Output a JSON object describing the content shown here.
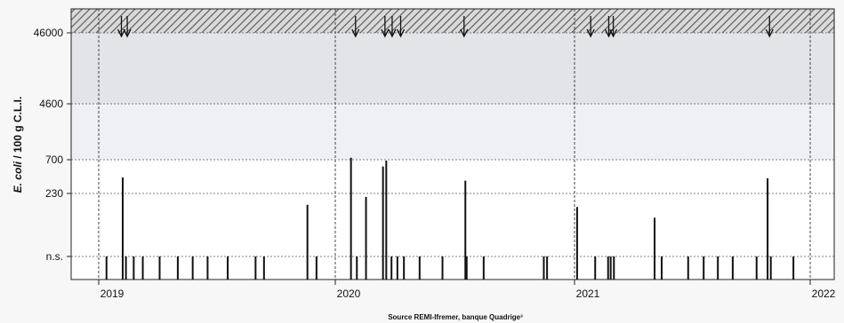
{
  "chart_data": {
    "type": "bar",
    "title": "",
    "xlabel": "",
    "ylabel_italic": "E. coli",
    "ylabel_rest": "/ 100 g C.L.I.",
    "source": "Source REMI-Ifremer, banque Quadrige³",
    "x_ticks": [
      "2019",
      "2020",
      "2021",
      "2022"
    ],
    "y_ticks": [
      "n.s.",
      "230",
      "700",
      "4600",
      "46000"
    ],
    "bands": {
      "above_46000": "hatched",
      "4600_to_46000": "light grey",
      "700_to_4600": "very light grey",
      "below_700": "white"
    },
    "grid": true,
    "xlim": [
      "2019-01-01",
      "2022-01-01"
    ],
    "values": [
      {
        "date": "2019-01-13",
        "value": "n.s."
      },
      {
        "date": "2019-02-07",
        "value": 390
      },
      {
        "date": "2019-02-12",
        "value": "n.s."
      },
      {
        "date": "2019-02-24",
        "value": "n.s."
      },
      {
        "date": "2019-03-10",
        "value": "n.s."
      },
      {
        "date": "2019-04-05",
        "value": "n.s."
      },
      {
        "date": "2019-05-03",
        "value": "n.s."
      },
      {
        "date": "2019-05-26",
        "value": "n.s."
      },
      {
        "date": "2019-06-18",
        "value": "n.s."
      },
      {
        "date": "2019-07-19",
        "value": "n.s."
      },
      {
        "date": "2019-08-31",
        "value": "n.s."
      },
      {
        "date": "2019-09-13",
        "value": "n.s."
      },
      {
        "date": "2019-11-19",
        "value": 170
      },
      {
        "date": "2019-12-03",
        "value": "n.s."
      },
      {
        "date": "2020-01-25",
        "value": 750
      },
      {
        "date": "2020-02-03",
        "value": "n.s."
      },
      {
        "date": "2020-02-17",
        "value": 210
      },
      {
        "date": "2020-03-14",
        "value": 560
      },
      {
        "date": "2020-03-19",
        "value": 680
      },
      {
        "date": "2020-03-27",
        "value": "n.s."
      },
      {
        "date": "2020-04-05",
        "value": "n.s."
      },
      {
        "date": "2020-04-15",
        "value": "n.s."
      },
      {
        "date": "2020-05-09",
        "value": "n.s."
      },
      {
        "date": "2020-06-13",
        "value": "n.s."
      },
      {
        "date": "2020-07-18",
        "value": 350
      },
      {
        "date": "2020-07-20",
        "value": "n.s."
      },
      {
        "date": "2020-08-15",
        "value": "n.s."
      },
      {
        "date": "2020-11-15",
        "value": "n.s."
      },
      {
        "date": "2020-11-20",
        "value": "n.s."
      },
      {
        "date": "2021-01-05",
        "value": 160
      },
      {
        "date": "2021-02-02",
        "value": "n.s."
      },
      {
        "date": "2021-02-22",
        "value": "n.s."
      },
      {
        "date": "2021-02-26",
        "value": "n.s."
      },
      {
        "date": "2021-03-03",
        "value": "n.s."
      },
      {
        "date": "2021-05-05",
        "value": 120
      },
      {
        "date": "2021-05-16",
        "value": "n.s."
      },
      {
        "date": "2021-06-26",
        "value": "n.s."
      },
      {
        "date": "2021-07-20",
        "value": "n.s."
      },
      {
        "date": "2021-08-11",
        "value": "n.s."
      },
      {
        "date": "2021-09-03",
        "value": "n.s."
      },
      {
        "date": "2021-10-10",
        "value": "n.s."
      },
      {
        "date": "2021-10-27",
        "value": 380
      },
      {
        "date": "2021-11-01",
        "value": "n.s."
      },
      {
        "date": "2021-12-06",
        "value": "n.s."
      }
    ],
    "arrows": [
      "2019-02-05",
      "2019-02-14",
      "2020-02-01",
      "2020-03-17",
      "2020-03-28",
      "2020-04-10",
      "2020-07-16",
      "2021-01-26",
      "2021-02-23",
      "2021-03-02",
      "2021-10-30"
    ]
  }
}
